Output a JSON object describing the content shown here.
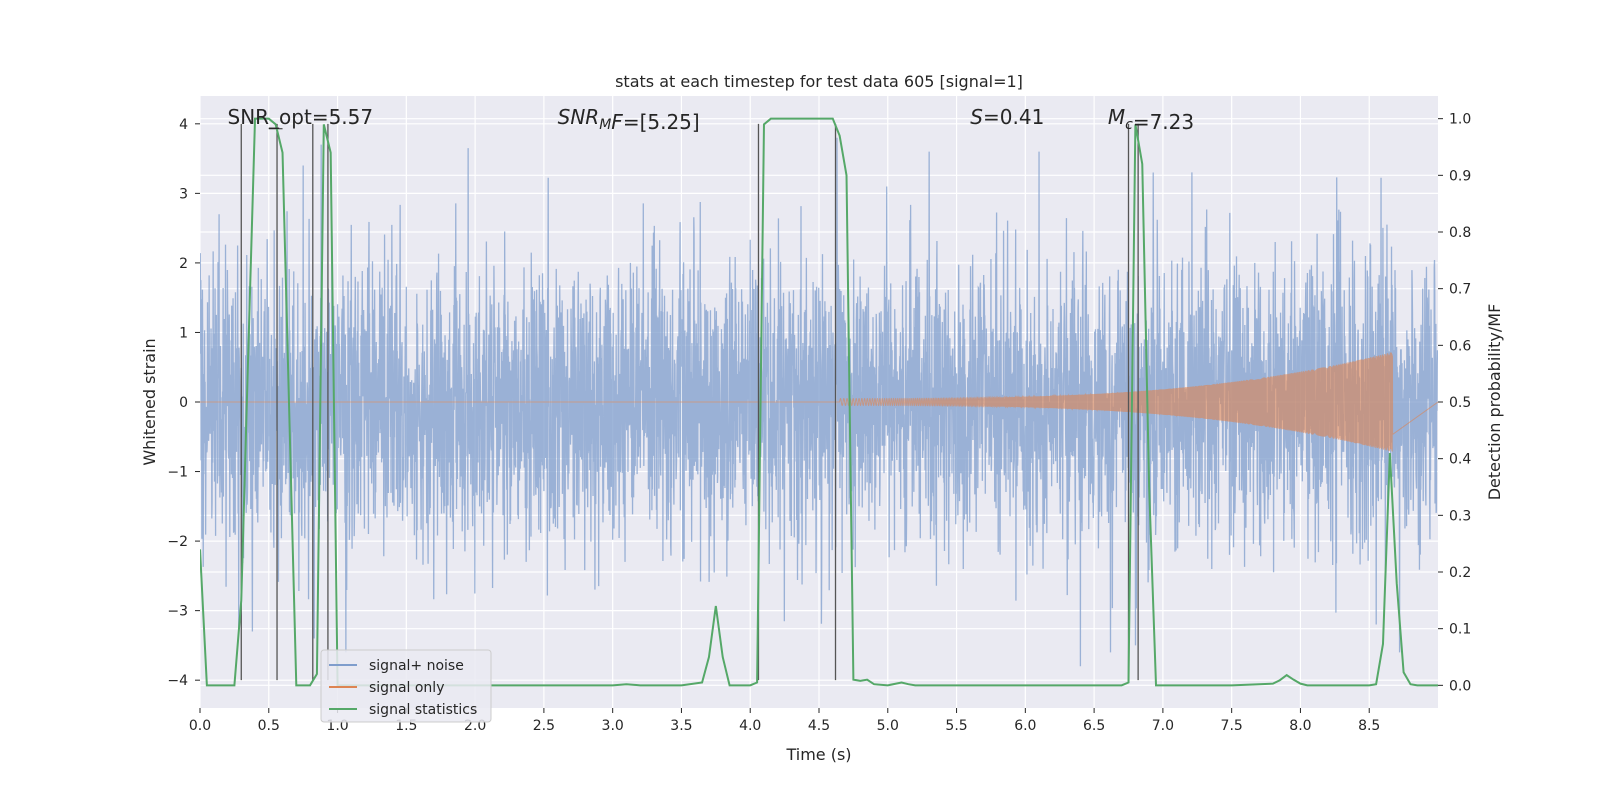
{
  "chart_data": {
    "type": "line",
    "title": "stats at each timestep for test data 605 [signal=1]",
    "xlabel": "Time (s)",
    "ylabel": "Whitened strain",
    "ylabel_right": "Detection probability/MF",
    "xlim": [
      0.0,
      9.0
    ],
    "ylim_left": [
      -4.4,
      4.4
    ],
    "ylim_right": [
      -0.04,
      1.04
    ],
    "x_ticks": [
      0.0,
      0.5,
      1.0,
      1.5,
      2.0,
      2.5,
      3.0,
      3.5,
      4.0,
      4.5,
      5.0,
      5.5,
      6.0,
      6.5,
      7.0,
      7.5,
      8.0,
      8.5
    ],
    "x_tick_labels": [
      "0.0",
      "0.5",
      "1.0",
      "1.5",
      "2.0",
      "2.5",
      "3.0",
      "3.5",
      "4.0",
      "4.5",
      "5.0",
      "5.5",
      "6.0",
      "6.5",
      "7.0",
      "7.5",
      "8.0",
      "8.5"
    ],
    "y_ticks_left": [
      -4,
      -3,
      -2,
      -1,
      0,
      1,
      2,
      3,
      4
    ],
    "y_tick_labels_left": [
      "−4",
      "−3",
      "−2",
      "−1",
      "0",
      "1",
      "2",
      "3",
      "4"
    ],
    "y_ticks_right": [
      0.0,
      0.1,
      0.2,
      0.3,
      0.4,
      0.5,
      0.6,
      0.7,
      0.8,
      0.9,
      1.0
    ],
    "y_tick_labels_right": [
      "0.0",
      "0.1",
      "0.2",
      "0.3",
      "0.4",
      "0.5",
      "0.6",
      "0.7",
      "0.8",
      "0.9",
      "1.0"
    ],
    "grid": true,
    "legend_position": "lower-left",
    "annotations": [
      {
        "x": 0.2,
        "y": 4.0,
        "parts": [
          {
            "t": "SNR_opt=5.57"
          }
        ]
      },
      {
        "x": 2.6,
        "y": 4.0,
        "parts": [
          {
            "t": "SNR",
            "i": true
          },
          {
            "t": "M",
            "i": true,
            "sub": true
          },
          {
            "t": "F",
            "i": true
          },
          {
            "t": "=[5.25]"
          }
        ]
      },
      {
        "x": 5.6,
        "y": 4.0,
        "parts": [
          {
            "t": "S",
            "i": true
          },
          {
            "t": "=0.41"
          }
        ]
      },
      {
        "x": 6.6,
        "y": 4.0,
        "parts": [
          {
            "t": "M",
            "i": true
          },
          {
            "t": "c",
            "i": true,
            "sub": true
          },
          {
            "t": "=7.23"
          }
        ]
      }
    ],
    "series": [
      {
        "name": "signal+ noise",
        "color": "#7f9dcc",
        "axis": "left",
        "kind": "noise",
        "x_range": [
          0.0,
          9.0
        ],
        "sigma": 1.0,
        "sample_rate": 512,
        "peaks": [
          [
            0.75,
            3.4
          ],
          [
            0.88,
            3.7
          ],
          [
            1.95,
            3.65
          ],
          [
            4.63,
            3.8
          ],
          [
            5.3,
            3.6
          ],
          [
            6.1,
            3.6
          ],
          [
            6.93,
            3.3
          ],
          [
            0.38,
            -3.3
          ],
          [
            0.83,
            -3.4
          ],
          [
            1.06,
            -3.6
          ],
          [
            6.4,
            -3.8
          ],
          [
            6.62,
            -3.6
          ],
          [
            6.8,
            -3.5
          ],
          [
            8.55,
            -3.2
          ],
          [
            8.72,
            -3.6
          ]
        ]
      },
      {
        "name": "signal only",
        "color": "#dd8452",
        "axis": "left",
        "kind": "chirp",
        "start": 4.65,
        "end": 8.67,
        "amp_start": 0.05,
        "amp_end": 0.72
      },
      {
        "name": "signal statistics",
        "color": "#55a868",
        "axis": "right",
        "kind": "line",
        "x": [
          0.0,
          0.05,
          0.1,
          0.25,
          0.3,
          0.35,
          0.4,
          0.5,
          0.55,
          0.6,
          0.7,
          0.75,
          0.8,
          0.85,
          0.9,
          0.95,
          1.0,
          1.05,
          1.1,
          1.2,
          1.5,
          2.0,
          2.5,
          3.0,
          3.1,
          3.2,
          3.5,
          3.65,
          3.7,
          3.75,
          3.8,
          3.85,
          4.0,
          4.05,
          4.1,
          4.15,
          4.2,
          4.5,
          4.6,
          4.65,
          4.7,
          4.75,
          4.8,
          4.85,
          4.9,
          5.0,
          5.1,
          5.15,
          5.2,
          5.5,
          6.0,
          6.5,
          6.7,
          6.75,
          6.8,
          6.85,
          6.9,
          6.95,
          7.0,
          7.5,
          7.8,
          7.85,
          7.9,
          7.95,
          8.0,
          8.05,
          8.5,
          8.55,
          8.6,
          8.65,
          8.7,
          8.75,
          8.8,
          8.85,
          8.9,
          9.0
        ],
        "y": [
          0.24,
          0.0,
          0.0,
          0.0,
          0.15,
          0.58,
          1.0,
          1.0,
          0.99,
          0.94,
          0.0,
          0.0,
          0.0,
          0.02,
          0.99,
          0.94,
          0.0,
          0.0,
          0.0,
          0.0,
          0.0,
          0.0,
          0.0,
          0.0,
          0.002,
          0.0,
          0.0,
          0.005,
          0.05,
          0.14,
          0.05,
          0.0,
          0.0,
          0.005,
          0.99,
          1.0,
          1.0,
          1.0,
          1.0,
          0.97,
          0.9,
          0.01,
          0.008,
          0.01,
          0.002,
          0.0,
          0.005,
          0.002,
          0.0,
          0.0,
          0.0,
          0.0,
          0.0,
          0.005,
          0.99,
          0.92,
          0.35,
          0.0,
          0.0,
          0.0,
          0.003,
          0.009,
          0.018,
          0.01,
          0.003,
          0.0,
          0.0,
          0.002,
          0.073,
          0.41,
          0.18,
          0.023,
          0.002,
          0.0,
          0.0,
          0.0
        ]
      }
    ],
    "vlines": [
      0.3,
      0.56,
      0.82,
      0.93,
      4.06,
      4.62,
      6.75,
      6.82
    ],
    "vline_color": "#555555"
  }
}
